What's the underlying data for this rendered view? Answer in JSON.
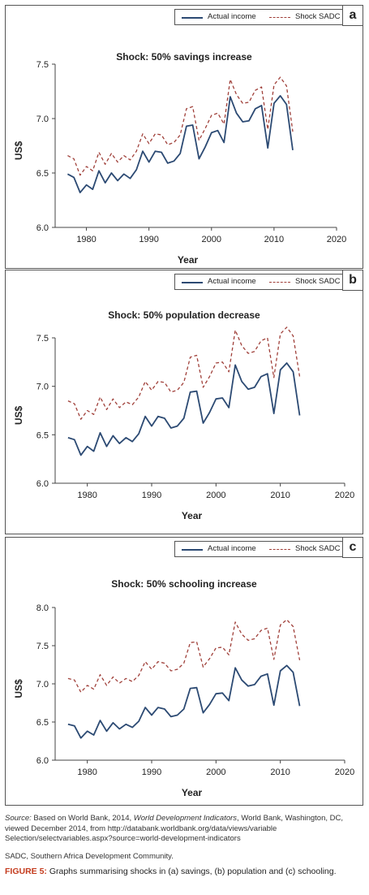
{
  "legend": {
    "actual_label": "Actual income",
    "shock_label": "Shock SADC",
    "actual_color": "#2c4a73",
    "shock_color": "#a0403a"
  },
  "chart_data": [
    {
      "type": "line",
      "panel_letter": "a",
      "title": "Shock: 50% savings increase",
      "xlabel": "Year",
      "ylabel": "US$",
      "xlim": [
        1975,
        2020
      ],
      "ylim": [
        6.0,
        7.5
      ],
      "xticks": [
        1980,
        1990,
        2000,
        2010,
        2020
      ],
      "yticks": [
        6.0,
        6.5,
        7.0,
        7.5
      ],
      "ytick_labels": [
        "6.0",
        "6.5",
        "7.0",
        "7.5"
      ],
      "x": [
        1977,
        1978,
        1979,
        1980,
        1981,
        1982,
        1983,
        1984,
        1985,
        1986,
        1987,
        1988,
        1989,
        1990,
        1991,
        1992,
        1993,
        1994,
        1995,
        1996,
        1997,
        1998,
        1999,
        2000,
        2001,
        2002,
        2003,
        2004,
        2005,
        2006,
        2007,
        2008,
        2009,
        2010,
        2011,
        2012,
        2013
      ],
      "series": [
        {
          "name": "Actual income",
          "values": [
            6.49,
            6.46,
            6.32,
            6.39,
            6.35,
            6.52,
            6.41,
            6.5,
            6.43,
            6.49,
            6.45,
            6.53,
            6.7,
            6.6,
            6.7,
            6.69,
            6.59,
            6.61,
            6.68,
            6.93,
            6.94,
            6.63,
            6.74,
            6.87,
            6.89,
            6.78,
            7.2,
            7.05,
            6.97,
            6.98,
            7.09,
            7.12,
            6.73,
            7.14,
            7.21,
            7.13,
            6.71
          ]
        },
        {
          "name": "Shock SADC",
          "values": [
            6.66,
            6.63,
            6.48,
            6.56,
            6.52,
            6.69,
            6.58,
            6.68,
            6.6,
            6.66,
            6.62,
            6.7,
            6.86,
            6.77,
            6.86,
            6.85,
            6.76,
            6.78,
            6.85,
            7.09,
            7.11,
            6.8,
            6.91,
            7.03,
            7.05,
            6.95,
            7.36,
            7.22,
            7.14,
            7.15,
            7.26,
            7.29,
            6.9,
            7.31,
            7.38,
            7.3,
            6.88
          ]
        }
      ]
    },
    {
      "type": "line",
      "panel_letter": "b",
      "title": "Shock: 50% population decrease",
      "xlabel": "Year",
      "ylabel": "US$",
      "xlim": [
        1975,
        2020
      ],
      "ylim": [
        6.0,
        7.5
      ],
      "xticks": [
        1980,
        1990,
        2000,
        2010,
        2020
      ],
      "yticks": [
        6.0,
        6.5,
        7.0,
        7.5
      ],
      "ytick_labels": [
        "6.0",
        "6.5",
        "7.0",
        "7.5"
      ],
      "x": [
        1977,
        1978,
        1979,
        1980,
        1981,
        1982,
        1983,
        1984,
        1985,
        1986,
        1987,
        1988,
        1989,
        1990,
        1991,
        1992,
        1993,
        1994,
        1995,
        1996,
        1997,
        1998,
        1999,
        2000,
        2001,
        2002,
        2003,
        2004,
        2005,
        2006,
        2007,
        2008,
        2009,
        2010,
        2011,
        2012,
        2013
      ],
      "series": [
        {
          "name": "Actual income",
          "values": [
            6.47,
            6.45,
            6.29,
            6.38,
            6.33,
            6.52,
            6.38,
            6.49,
            6.41,
            6.47,
            6.43,
            6.51,
            6.69,
            6.59,
            6.69,
            6.67,
            6.57,
            6.59,
            6.67,
            6.94,
            6.95,
            6.62,
            6.73,
            6.87,
            6.88,
            6.78,
            7.22,
            7.05,
            6.97,
            6.99,
            7.1,
            7.13,
            6.72,
            7.17,
            7.24,
            7.15,
            6.7
          ]
        },
        {
          "name": "Shock SADC",
          "values": [
            6.85,
            6.82,
            6.66,
            6.75,
            6.71,
            6.89,
            6.76,
            6.87,
            6.78,
            6.84,
            6.81,
            6.89,
            7.05,
            6.96,
            7.05,
            7.04,
            6.94,
            6.96,
            7.04,
            7.3,
            7.32,
            6.99,
            7.1,
            7.24,
            7.25,
            7.15,
            7.58,
            7.42,
            7.34,
            7.36,
            7.47,
            7.5,
            7.09,
            7.54,
            7.61,
            7.52,
            7.1
          ]
        }
      ]
    },
    {
      "type": "line",
      "panel_letter": "c",
      "title": "Shock: 50% schooling increase",
      "xlabel": "Year",
      "ylabel": "US$",
      "xlim": [
        1975,
        2020
      ],
      "ylim": [
        6.0,
        8.0
      ],
      "xticks": [
        1980,
        1990,
        2000,
        2010,
        2020
      ],
      "yticks": [
        6.0,
        6.5,
        7.0,
        7.5,
        8.0
      ],
      "ytick_labels": [
        "6.0",
        "6.5",
        "7.0",
        "7.5",
        "8.0"
      ],
      "x": [
        1977,
        1978,
        1979,
        1980,
        1981,
        1982,
        1983,
        1984,
        1985,
        1986,
        1987,
        1988,
        1989,
        1990,
        1991,
        1992,
        1993,
        1994,
        1995,
        1996,
        1997,
        1998,
        1999,
        2000,
        2001,
        2002,
        2003,
        2004,
        2005,
        2006,
        2007,
        2008,
        2009,
        2010,
        2011,
        2012,
        2013
      ],
      "series": [
        {
          "name": "Actual income",
          "values": [
            6.47,
            6.45,
            6.29,
            6.38,
            6.33,
            6.52,
            6.38,
            6.49,
            6.41,
            6.47,
            6.43,
            6.51,
            6.69,
            6.59,
            6.69,
            6.67,
            6.57,
            6.59,
            6.67,
            6.94,
            6.95,
            6.62,
            6.73,
            6.87,
            6.88,
            6.78,
            7.21,
            7.05,
            6.97,
            6.99,
            7.1,
            7.13,
            6.72,
            7.17,
            7.24,
            7.15,
            6.71
          ]
        },
        {
          "name": "Shock SADC",
          "values": [
            7.07,
            7.05,
            6.89,
            6.98,
            6.93,
            7.12,
            6.98,
            7.09,
            7.01,
            7.07,
            7.03,
            7.11,
            7.29,
            7.19,
            7.29,
            7.27,
            7.17,
            7.19,
            7.27,
            7.54,
            7.55,
            7.22,
            7.33,
            7.47,
            7.48,
            7.38,
            7.81,
            7.65,
            7.57,
            7.59,
            7.7,
            7.73,
            7.32,
            7.77,
            7.84,
            7.75,
            7.31
          ]
        }
      ]
    }
  ],
  "footer": {
    "source_label": "Source:",
    "source_pre": " Based on World Bank, 2014, ",
    "source_title": "World Development Indicators",
    "source_post": ", World Bank, Washington, DC, viewed December 2014, from http://databank.worldbank.org/data/views/variable Selection/selectvariables.aspx?source=world-development-indicators",
    "abbrev": "SADC, Southern Africa Development Community.",
    "figure_label": "FIGURE 5:",
    "figure_text": " Graphs summarising shocks in (a) savings, (b) population and (c) schooling."
  }
}
